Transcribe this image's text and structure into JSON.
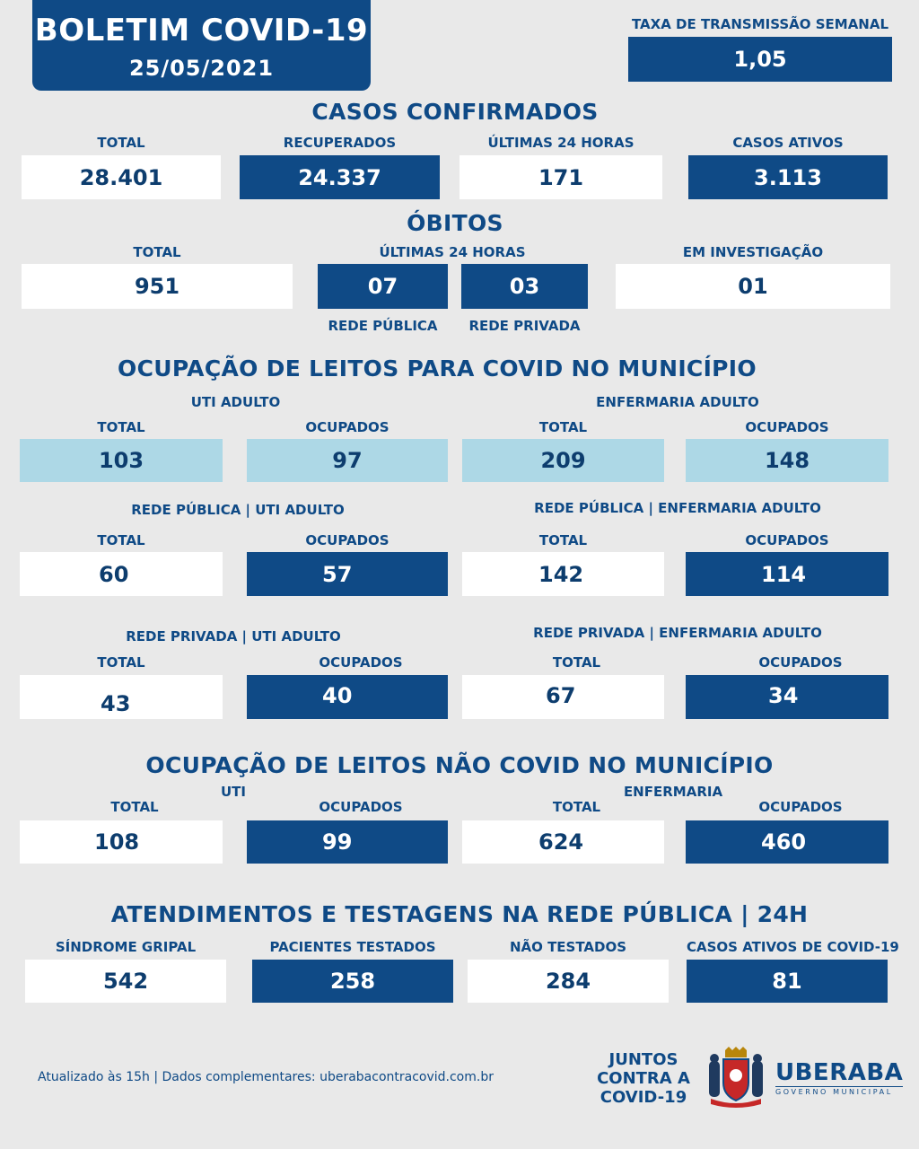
{
  "header": {
    "title": "BOLETIM COVID-19",
    "date": "25/05/2021"
  },
  "transmission": {
    "label": "TAXA DE TRANSMISSÃO SEMANAL",
    "value": "1,05"
  },
  "confirmed": {
    "title": "CASOS CONFIRMADOS",
    "items": [
      {
        "label": "TOTAL",
        "value": "28.401"
      },
      {
        "label": "RECUPERADOS",
        "value": "24.337"
      },
      {
        "label": "ÚLTIMAS 24 HORAS",
        "value": "171"
      },
      {
        "label": "CASOS ATIVOS",
        "value": "3.113"
      }
    ]
  },
  "deaths": {
    "title": "ÓBITOS",
    "total_label": "TOTAL",
    "total": "951",
    "last24_label": "ÚLTIMAS 24 HORAS",
    "public_value": "07",
    "public_label": "REDE PÚBLICA",
    "private_value": "03",
    "private_label": "REDE PRIVADA",
    "investigation_label": "EM INVESTIGAÇÃO",
    "investigation": "01"
  },
  "covid_beds": {
    "title": "OCUPAÇÃO DE LEITOS PARA COVID NO MUNICÍPIO",
    "uti_label": "UTI ADULTO",
    "ward_label": "ENFERMARIA ADULTO",
    "total_label": "TOTAL",
    "occupied_label": "OCUPADOS",
    "uti_total": "103",
    "uti_occupied": "97",
    "ward_total": "209",
    "ward_occupied": "148",
    "public_uti_label": "REDE PÚBLICA | UTI ADULTO",
    "public_ward_label": "REDE PÚBLICA | ENFERMARIA ADULTO",
    "public_uti_total": "60",
    "public_uti_occupied": "57",
    "public_ward_total": "142",
    "public_ward_occupied": "114",
    "private_uti_label": "REDE PRIVADA | UTI ADULTO",
    "private_ward_label": "REDE PRIVADA | ENFERMARIA ADULTO",
    "private_uti_total": "43",
    "private_uti_occupied": "40",
    "private_ward_total": "67",
    "private_ward_occupied": "34"
  },
  "non_covid_beds": {
    "title": "OCUPAÇÃO DE LEITOS NÃO COVID NO MUNICÍPIO",
    "uti_label": "UTI",
    "ward_label": "ENFERMARIA",
    "total_label": "TOTAL",
    "occupied_label": "OCUPADOS",
    "uti_total": "108",
    "uti_occupied": "99",
    "ward_total": "624",
    "ward_occupied": "460"
  },
  "public_care": {
    "title": "ATENDIMENTOS E TESTAGENS NA REDE PÚBLICA | 24H",
    "items": [
      {
        "label": "SÍNDROME GRIPAL",
        "value": "542"
      },
      {
        "label": "PACIENTES TESTADOS",
        "value": "258"
      },
      {
        "label": "NÃO TESTADOS",
        "value": "284"
      },
      {
        "label": "CASOS ATIVOS DE COVID-19",
        "value": "81"
      }
    ]
  },
  "footer": {
    "text": "Atualizado às 15h | Dados complementares: uberabacontracovid.com.br",
    "juntos_line1": "JUNTOS",
    "juntos_line2": "CONTRA A",
    "juntos_line3": "COVID-19",
    "city": "UBERABA",
    "city_sub": "GOVERNO MUNICIPAL",
    "crest_icon": "coat-of-arms-icon"
  },
  "colors": {
    "navy": "#0f4a86",
    "light_blue": "#add8e6",
    "background": "#e9e9e9",
    "white": "#ffffff"
  }
}
